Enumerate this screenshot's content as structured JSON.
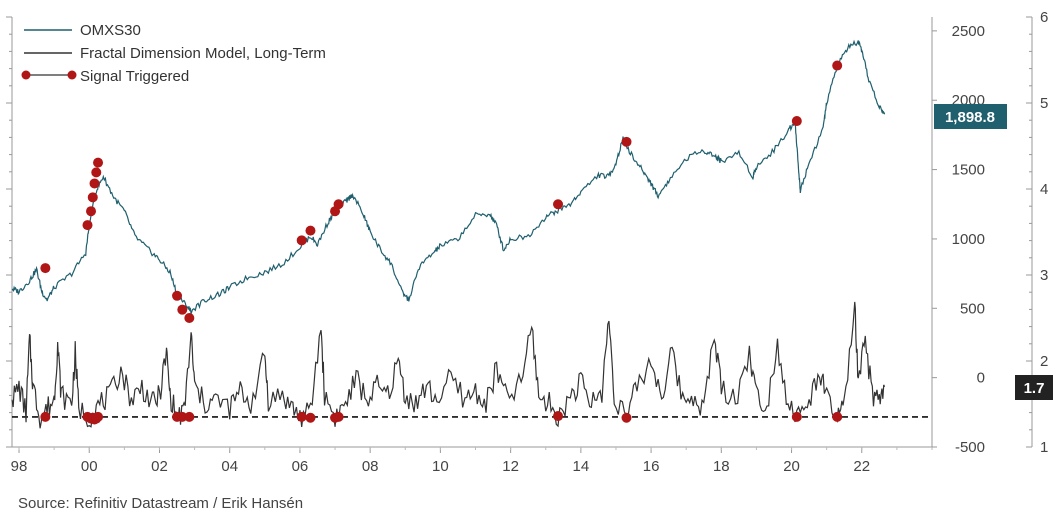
{
  "chart_data": {
    "type": "line",
    "title": "",
    "source": "Source: Refinitiv Datastream / Erik Hansén",
    "x_axis": {
      "range": [
        1997.8,
        2024.0
      ],
      "ticks": [
        1998,
        2000,
        2002,
        2004,
        2006,
        2008,
        2010,
        2012,
        2014,
        2016,
        2018,
        2020,
        2022
      ],
      "tick_labels": [
        "98",
        "00",
        "02",
        "04",
        "06",
        "08",
        "10",
        "12",
        "14",
        "16",
        "18",
        "20",
        "22"
      ]
    },
    "left_axis": {
      "range": [
        1.0,
        6.0
      ],
      "ticks": [
        1,
        2,
        3,
        4,
        5,
        6
      ],
      "minor_ticks_per_unit": 5,
      "labels_shown": false
    },
    "right_inner_axis": {
      "range": [
        -500,
        2600
      ],
      "ticks": [
        -500,
        0,
        500,
        1000,
        1500,
        2000,
        2500
      ],
      "tick_labels": [
        "-500",
        "0",
        "500",
        "1000",
        "1500",
        "2000",
        "2500"
      ]
    },
    "right_outer_axis": {
      "range": [
        1.0,
        6.0
      ],
      "ticks": [
        1,
        2,
        3,
        4,
        5,
        6
      ],
      "tick_labels": [
        "1",
        "2",
        "3",
        "4",
        "5",
        "6"
      ]
    },
    "legend": {
      "position": "top-left",
      "entries": [
        {
          "label": "OMXS30",
          "color": "#1f5f6e"
        },
        {
          "label": "Fractal Dimension Model, Long-Term",
          "color": "#333333"
        },
        {
          "label": "Signal Triggered",
          "color": "#b01616"
        }
      ]
    },
    "series": [
      {
        "name": "OMXS30",
        "axis": "right_inner",
        "color": "#1f5f6e",
        "points": [
          [
            1997.8,
            640
          ],
          [
            1998.0,
            620
          ],
          [
            1998.3,
            700
          ],
          [
            1998.5,
            780
          ],
          [
            1998.65,
            620
          ],
          [
            1998.8,
            560
          ],
          [
            1999.0,
            650
          ],
          [
            1999.5,
            750
          ],
          [
            1999.9,
            900
          ],
          [
            2000.0,
            1100
          ],
          [
            2000.2,
            1350
          ],
          [
            2000.4,
            1450
          ],
          [
            2000.7,
            1300
          ],
          [
            2001.0,
            1200
          ],
          [
            2001.3,
            1020
          ],
          [
            2001.7,
            920
          ],
          [
            2002.0,
            850
          ],
          [
            2002.3,
            760
          ],
          [
            2002.5,
            600
          ],
          [
            2002.7,
            540
          ],
          [
            2002.9,
            480
          ],
          [
            2003.3,
            560
          ],
          [
            2003.7,
            600
          ],
          [
            2004.0,
            650
          ],
          [
            2004.5,
            720
          ],
          [
            2005.0,
            760
          ],
          [
            2005.5,
            820
          ],
          [
            2006.0,
            940
          ],
          [
            2006.3,
            1020
          ],
          [
            2006.5,
            960
          ],
          [
            2006.8,
            1120
          ],
          [
            2007.0,
            1200
          ],
          [
            2007.3,
            1270
          ],
          [
            2007.5,
            1320
          ],
          [
            2007.8,
            1180
          ],
          [
            2008.0,
            1050
          ],
          [
            2008.3,
            920
          ],
          [
            2008.6,
            820
          ],
          [
            2008.9,
            620
          ],
          [
            2009.1,
            560
          ],
          [
            2009.4,
            800
          ],
          [
            2009.8,
            900
          ],
          [
            2010.0,
            950
          ],
          [
            2010.5,
            1000
          ],
          [
            2011.0,
            1170
          ],
          [
            2011.4,
            1180
          ],
          [
            2011.6,
            1100
          ],
          [
            2011.8,
            920
          ],
          [
            2012.0,
            1000
          ],
          [
            2012.5,
            1020
          ],
          [
            2013.0,
            1160
          ],
          [
            2013.3,
            1200
          ],
          [
            2013.7,
            1250
          ],
          [
            2014.0,
            1340
          ],
          [
            2014.5,
            1460
          ],
          [
            2014.8,
            1450
          ],
          [
            2015.0,
            1550
          ],
          [
            2015.2,
            1720
          ],
          [
            2015.5,
            1580
          ],
          [
            2015.8,
            1480
          ],
          [
            2016.0,
            1400
          ],
          [
            2016.2,
            1310
          ],
          [
            2016.5,
            1420
          ],
          [
            2017.0,
            1580
          ],
          [
            2017.5,
            1640
          ],
          [
            2017.8,
            1600
          ],
          [
            2018.0,
            1560
          ],
          [
            2018.5,
            1620
          ],
          [
            2018.9,
            1450
          ],
          [
            2019.0,
            1520
          ],
          [
            2019.5,
            1640
          ],
          [
            2019.9,
            1780
          ],
          [
            2020.1,
            1850
          ],
          [
            2020.2,
            1500
          ],
          [
            2020.25,
            1350
          ],
          [
            2020.5,
            1550
          ],
          [
            2020.9,
            1800
          ],
          [
            2021.0,
            1980
          ],
          [
            2021.3,
            2250
          ],
          [
            2021.6,
            2380
          ],
          [
            2021.9,
            2420
          ],
          [
            2022.0,
            2350
          ],
          [
            2022.2,
            2150
          ],
          [
            2022.5,
            1950
          ],
          [
            2022.65,
            1898.8
          ]
        ]
      },
      {
        "name": "Fractal Dimension Model, Long-Term",
        "axis": "left",
        "color": "#333333",
        "points": [
          [
            1997.8,
            1.55
          ],
          [
            1998.0,
            1.7
          ],
          [
            1998.2,
            1.4
          ],
          [
            1998.3,
            2.25
          ],
          [
            1998.4,
            1.7
          ],
          [
            1998.6,
            1.35
          ],
          [
            1998.8,
            1.45
          ],
          [
            1999.0,
            1.55
          ],
          [
            1999.1,
            2.2
          ],
          [
            1999.2,
            1.6
          ],
          [
            1999.5,
            1.5
          ],
          [
            1999.6,
            2.1
          ],
          [
            1999.7,
            1.45
          ],
          [
            2000.0,
            1.35
          ],
          [
            2000.3,
            1.5
          ],
          [
            2000.6,
            1.6
          ],
          [
            2000.9,
            1.9
          ],
          [
            2001.2,
            1.55
          ],
          [
            2001.5,
            1.7
          ],
          [
            2001.8,
            1.5
          ],
          [
            2002.0,
            1.6
          ],
          [
            2002.2,
            2.1
          ],
          [
            2002.3,
            1.6
          ],
          [
            2002.5,
            1.35
          ],
          [
            2002.7,
            1.4
          ],
          [
            2002.9,
            2.3
          ],
          [
            2003.0,
            1.7
          ],
          [
            2003.3,
            1.5
          ],
          [
            2003.6,
            1.55
          ],
          [
            2004.0,
            1.45
          ],
          [
            2004.3,
            1.65
          ],
          [
            2004.6,
            1.5
          ],
          [
            2005.0,
            2.05
          ],
          [
            2005.1,
            1.55
          ],
          [
            2005.5,
            1.6
          ],
          [
            2005.8,
            1.45
          ],
          [
            2006.0,
            1.35
          ],
          [
            2006.3,
            1.4
          ],
          [
            2006.6,
            2.4
          ],
          [
            2006.7,
            1.6
          ],
          [
            2007.0,
            1.35
          ],
          [
            2007.3,
            1.5
          ],
          [
            2007.6,
            1.8
          ],
          [
            2007.9,
            1.55
          ],
          [
            2008.2,
            1.7
          ],
          [
            2008.5,
            1.6
          ],
          [
            2008.8,
            2.0
          ],
          [
            2009.0,
            1.6
          ],
          [
            2009.3,
            1.5
          ],
          [
            2009.6,
            1.7
          ],
          [
            2009.9,
            1.55
          ],
          [
            2010.3,
            1.8
          ],
          [
            2010.7,
            1.55
          ],
          [
            2011.0,
            1.65
          ],
          [
            2011.3,
            1.5
          ],
          [
            2011.6,
            1.9
          ],
          [
            2011.9,
            1.55
          ],
          [
            2012.3,
            1.75
          ],
          [
            2012.6,
            2.4
          ],
          [
            2012.8,
            1.6
          ],
          [
            2013.1,
            1.5
          ],
          [
            2013.4,
            1.35
          ],
          [
            2013.7,
            1.6
          ],
          [
            2014.0,
            1.75
          ],
          [
            2014.3,
            1.5
          ],
          [
            2014.6,
            1.65
          ],
          [
            2014.8,
            2.5
          ],
          [
            2014.95,
            1.6
          ],
          [
            2015.3,
            1.35
          ],
          [
            2015.6,
            1.7
          ],
          [
            2016.0,
            2.0
          ],
          [
            2016.3,
            1.6
          ],
          [
            2016.6,
            2.1
          ],
          [
            2016.9,
            1.55
          ],
          [
            2017.2,
            1.6
          ],
          [
            2017.5,
            1.45
          ],
          [
            2017.8,
            2.3
          ],
          [
            2018.0,
            1.7
          ],
          [
            2018.4,
            1.55
          ],
          [
            2018.8,
            2.1
          ],
          [
            2019.0,
            1.6
          ],
          [
            2019.3,
            1.5
          ],
          [
            2019.6,
            2.2
          ],
          [
            2019.9,
            1.5
          ],
          [
            2020.2,
            1.35
          ],
          [
            2020.5,
            1.5
          ],
          [
            2020.8,
            1.9
          ],
          [
            2021.0,
            1.55
          ],
          [
            2021.3,
            1.35
          ],
          [
            2021.5,
            1.45
          ],
          [
            2021.8,
            2.65
          ],
          [
            2021.9,
            1.7
          ],
          [
            2022.1,
            2.25
          ],
          [
            2022.3,
            1.6
          ],
          [
            2022.5,
            1.5
          ],
          [
            2022.65,
            1.7
          ]
        ]
      }
    ],
    "threshold": {
      "axis": "left",
      "value": 1.35,
      "style": "dashed",
      "color": "#111111"
    },
    "signals": [
      {
        "x": 1998.75,
        "index_value": 790,
        "model_value": 1.35
      },
      {
        "x": 1999.95,
        "index_value": 1100,
        "model_value": 1.35
      },
      {
        "x": 2000.05,
        "index_value": 1200,
        "model_value": 1.33
      },
      {
        "x": 2000.1,
        "index_value": 1300,
        "model_value": 1.34
      },
      {
        "x": 2000.15,
        "index_value": 1400,
        "model_value": 1.32
      },
      {
        "x": 2000.2,
        "index_value": 1480,
        "model_value": 1.33
      },
      {
        "x": 2000.25,
        "index_value": 1550,
        "model_value": 1.35
      },
      {
        "x": 2002.5,
        "index_value": 590,
        "model_value": 1.35
      },
      {
        "x": 2002.65,
        "index_value": 490,
        "model_value": 1.35
      },
      {
        "x": 2002.85,
        "index_value": 430,
        "model_value": 1.35
      },
      {
        "x": 2006.05,
        "index_value": 990,
        "model_value": 1.35
      },
      {
        "x": 2006.3,
        "index_value": 1060,
        "model_value": 1.34
      },
      {
        "x": 2007.0,
        "index_value": 1200,
        "model_value": 1.34
      },
      {
        "x": 2007.1,
        "index_value": 1250,
        "model_value": 1.35
      },
      {
        "x": 2013.35,
        "index_value": 1250,
        "model_value": 1.36
      },
      {
        "x": 2015.3,
        "index_value": 1700,
        "model_value": 1.34
      },
      {
        "x": 2020.15,
        "index_value": 1850,
        "model_value": 1.35
      },
      {
        "x": 2021.3,
        "index_value": 2250,
        "model_value": 1.35
      }
    ],
    "end_labels": {
      "index_last": "1,898.8",
      "model_last": "1.7"
    }
  }
}
